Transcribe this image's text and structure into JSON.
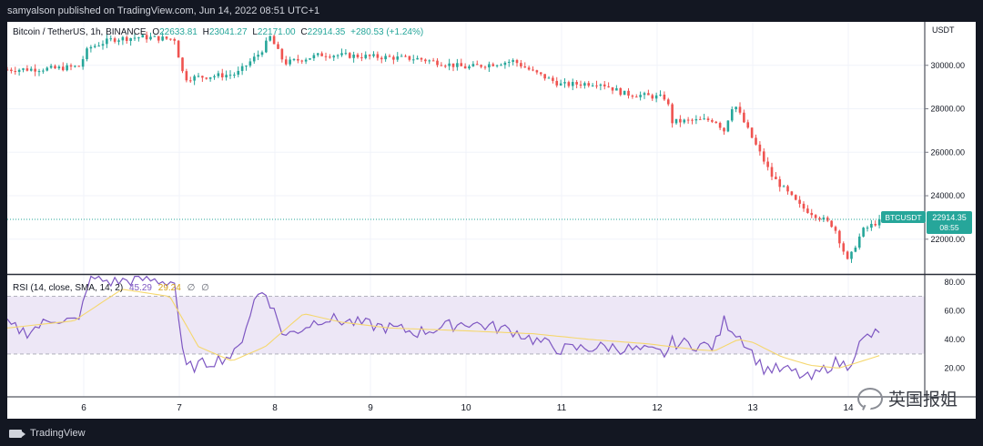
{
  "header": {
    "published_line": "samyalson published on TradingView.com, Jun 14, 2022 08:51 UTC+1"
  },
  "legend": {
    "symbol": "Bitcoin / TetherUS, 1h, BINANCE",
    "open_label": "O",
    "open_value": "22633.81",
    "high_label": "H",
    "high_value": "23041.27",
    "low_label": "L",
    "low_value": "22171.00",
    "close_label": "C",
    "close_value": "22914.35",
    "change": "+280.53 (+1.24%)"
  },
  "price_label": {
    "ticker": "BTCUSDT",
    "price": "22914.35",
    "countdown": "08:55"
  },
  "rsi_legend": {
    "name": "RSI (14, close, SMA, 14, 2)",
    "value": "45.29",
    "sma_value": "29.24",
    "icon_a": "∅",
    "icon_b": "∅"
  },
  "footer": {
    "brand": "TradingView"
  },
  "watermark": {
    "text": "英国报姐"
  },
  "colors": {
    "up": "#26a69a",
    "down": "#ef5350",
    "rsi": "#7e57c2",
    "rsi_sma": "#f5d76e",
    "band": "#ede7f6"
  },
  "chart_data": [
    {
      "type": "candlestick",
      "title": "Bitcoin / TetherUS, 1h, BINANCE",
      "currency": "USDT",
      "ylim": [
        20400,
        32000
      ],
      "y_ticks": [
        22000,
        24000,
        26000,
        28000,
        30000
      ],
      "y_tick_labels": [
        "22000.00",
        "24000.00",
        "26000.00",
        "28000.00",
        "30000.00"
      ],
      "x_ticks": [
        6,
        7,
        8,
        9,
        10,
        11,
        12,
        13,
        14
      ],
      "x_tick_labels": [
        "6",
        "7",
        "8",
        "9",
        "10",
        "11",
        "12",
        "13",
        "14"
      ],
      "x_range_days": [
        5.2,
        14.8
      ],
      "anchors_day": [
        5.2,
        5.7,
        5.95,
        6.05,
        6.3,
        6.6,
        6.95,
        7.05,
        7.6,
        7.85,
        7.95,
        8.1,
        8.5,
        9,
        9.5,
        10,
        10.5,
        10.7,
        11,
        11.4,
        11.65,
        12.1,
        12.15,
        12.6,
        12.7,
        12.8,
        13.0,
        13.2,
        13.5,
        13.7,
        13.85,
        14.0,
        14.05,
        14.15,
        14.35
      ],
      "anchors_price": [
        29800,
        29850,
        29950,
        30800,
        31200,
        31300,
        31200,
        29400,
        29600,
        30600,
        31300,
        30100,
        30500,
        30400,
        30300,
        29900,
        30200,
        29700,
        29100,
        29200,
        28700,
        28500,
        27400,
        27500,
        27000,
        28300,
        26600,
        24900,
        23500,
        23000,
        22600,
        20900,
        21500,
        22400,
        22914.35
      ],
      "last_price": 22914.35
    },
    {
      "type": "line",
      "title": "RSI (14, close, SMA, 14, 2)",
      "series": [
        {
          "name": "RSI",
          "anchors_day": [
            5.2,
            5.4,
            5.7,
            5.95,
            6.05,
            6.3,
            6.6,
            6.95,
            7.05,
            7.2,
            7.6,
            7.8,
            7.9,
            8.1,
            8.5,
            9,
            9.5,
            10,
            10.5,
            10.7,
            11,
            11.5,
            12.1,
            12.15,
            12.6,
            12.7,
            12.9,
            13.1,
            13.4,
            13.6,
            13.85,
            14.0,
            14.1,
            14.2,
            14.35
          ],
          "anchors_value": [
            50,
            45,
            55,
            52,
            83,
            80,
            82,
            80,
            20,
            22,
            30,
            70,
            74,
            42,
            55,
            50,
            45,
            52,
            46,
            40,
            33,
            35,
            30,
            38,
            35,
            53,
            40,
            20,
            18,
            12,
            24,
            22,
            35,
            42,
            45.29
          ]
        },
        {
          "name": "SMA",
          "anchors_day": [
            5.2,
            5.9,
            6.4,
            6.9,
            7.2,
            7.55,
            7.9,
            8.3,
            8.7,
            9.2,
            10,
            10.7,
            11.3,
            11.9,
            12.4,
            12.6,
            12.85,
            13.0,
            13.3,
            13.6,
            13.9,
            14.1,
            14.35
          ],
          "anchors_value": [
            48,
            53,
            75,
            70,
            35,
            25,
            35,
            58,
            52,
            48,
            46,
            44,
            40,
            37,
            33,
            32,
            40,
            38,
            28,
            22,
            20,
            24,
            29.24
          ]
        }
      ],
      "ylim": [
        0,
        85
      ],
      "y_ticks": [
        20,
        40,
        60,
        80
      ],
      "y_tick_labels": [
        "20.00",
        "40.00",
        "60.00",
        "80.00"
      ],
      "bands": [
        30,
        50,
        70
      ],
      "last_value": 45.29,
      "sma_last_value": 29.24
    }
  ]
}
